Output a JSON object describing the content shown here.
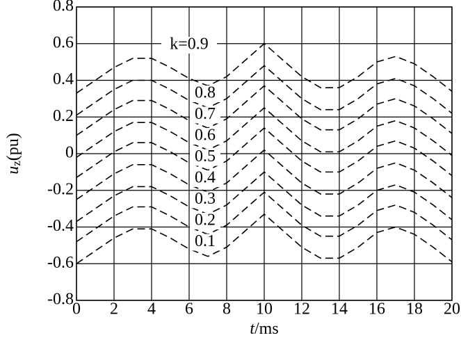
{
  "chart_data": {
    "type": "line",
    "x_label": [
      "t",
      "/ms"
    ],
    "y_label": [
      "u",
      "z",
      "(pu)"
    ],
    "x": [
      0,
      1,
      2,
      3,
      4,
      5,
      6,
      7,
      8,
      9,
      10,
      11,
      12,
      13,
      14,
      15,
      16,
      17,
      18,
      19,
      20
    ],
    "xlim": [
      0,
      20
    ],
    "xticks": [
      0,
      2,
      4,
      6,
      8,
      10,
      12,
      14,
      16,
      18,
      20
    ],
    "ylim": [
      -0.8,
      0.8
    ],
    "yticks": [
      -0.8,
      -0.6,
      -0.4,
      -0.2,
      0,
      0.2,
      0.4,
      0.6,
      0.8
    ],
    "grid": true,
    "color": "#000000",
    "series": [
      {
        "name": "k=0.9",
        "values": [
          0.33,
          0.4,
          0.47,
          0.52,
          0.52,
          0.47,
          0.41,
          0.37,
          0.42,
          0.51,
          0.6,
          0.51,
          0.42,
          0.36,
          0.36,
          0.42,
          0.5,
          0.53,
          0.49,
          0.42,
          0.34
        ]
      },
      {
        "name": "0.8",
        "values": [
          0.21,
          0.28,
          0.35,
          0.4,
          0.4,
          0.35,
          0.29,
          0.25,
          0.3,
          0.39,
          0.48,
          0.39,
          0.3,
          0.24,
          0.24,
          0.3,
          0.38,
          0.41,
          0.37,
          0.3,
          0.22
        ]
      },
      {
        "name": "0.7",
        "values": [
          0.1,
          0.17,
          0.24,
          0.29,
          0.29,
          0.24,
          0.18,
          0.14,
          0.19,
          0.28,
          0.37,
          0.28,
          0.19,
          0.13,
          0.13,
          0.19,
          0.27,
          0.3,
          0.26,
          0.19,
          0.11
        ]
      },
      {
        "name": "0.6",
        "values": [
          -0.02,
          0.05,
          0.12,
          0.17,
          0.17,
          0.12,
          0.06,
          0.02,
          0.07,
          0.16,
          0.25,
          0.16,
          0.07,
          0.01,
          0.01,
          0.07,
          0.15,
          0.18,
          0.14,
          0.07,
          -0.01
        ]
      },
      {
        "name": "0.5",
        "values": [
          -0.13,
          -0.06,
          0.01,
          0.06,
          0.06,
          0.01,
          -0.05,
          -0.09,
          -0.04,
          0.05,
          0.14,
          0.05,
          -0.04,
          -0.1,
          -0.1,
          -0.04,
          0.04,
          0.07,
          0.03,
          -0.04,
          -0.12
        ]
      },
      {
        "name": "0.4",
        "values": [
          -0.25,
          -0.18,
          -0.11,
          -0.06,
          -0.06,
          -0.11,
          -0.17,
          -0.21,
          -0.16,
          -0.07,
          0.02,
          -0.07,
          -0.16,
          -0.22,
          -0.22,
          -0.16,
          -0.08,
          -0.05,
          -0.09,
          -0.16,
          -0.24
        ]
      },
      {
        "name": "0.3",
        "values": [
          -0.37,
          -0.3,
          -0.23,
          -0.18,
          -0.18,
          -0.23,
          -0.29,
          -0.33,
          -0.28,
          -0.19,
          -0.1,
          -0.19,
          -0.28,
          -0.34,
          -0.34,
          -0.28,
          -0.2,
          -0.17,
          -0.21,
          -0.28,
          -0.36
        ]
      },
      {
        "name": "0.2",
        "values": [
          -0.48,
          -0.41,
          -0.34,
          -0.29,
          -0.29,
          -0.34,
          -0.4,
          -0.44,
          -0.39,
          -0.3,
          -0.21,
          -0.3,
          -0.39,
          -0.45,
          -0.45,
          -0.39,
          -0.31,
          -0.28,
          -0.32,
          -0.39,
          -0.47
        ]
      },
      {
        "name": "0.1",
        "values": [
          -0.6,
          -0.53,
          -0.46,
          -0.41,
          -0.41,
          -0.46,
          -0.52,
          -0.56,
          -0.51,
          -0.42,
          -0.33,
          -0.42,
          -0.51,
          -0.57,
          -0.57,
          -0.51,
          -0.43,
          -0.4,
          -0.44,
          -0.51,
          -0.59
        ]
      }
    ]
  }
}
